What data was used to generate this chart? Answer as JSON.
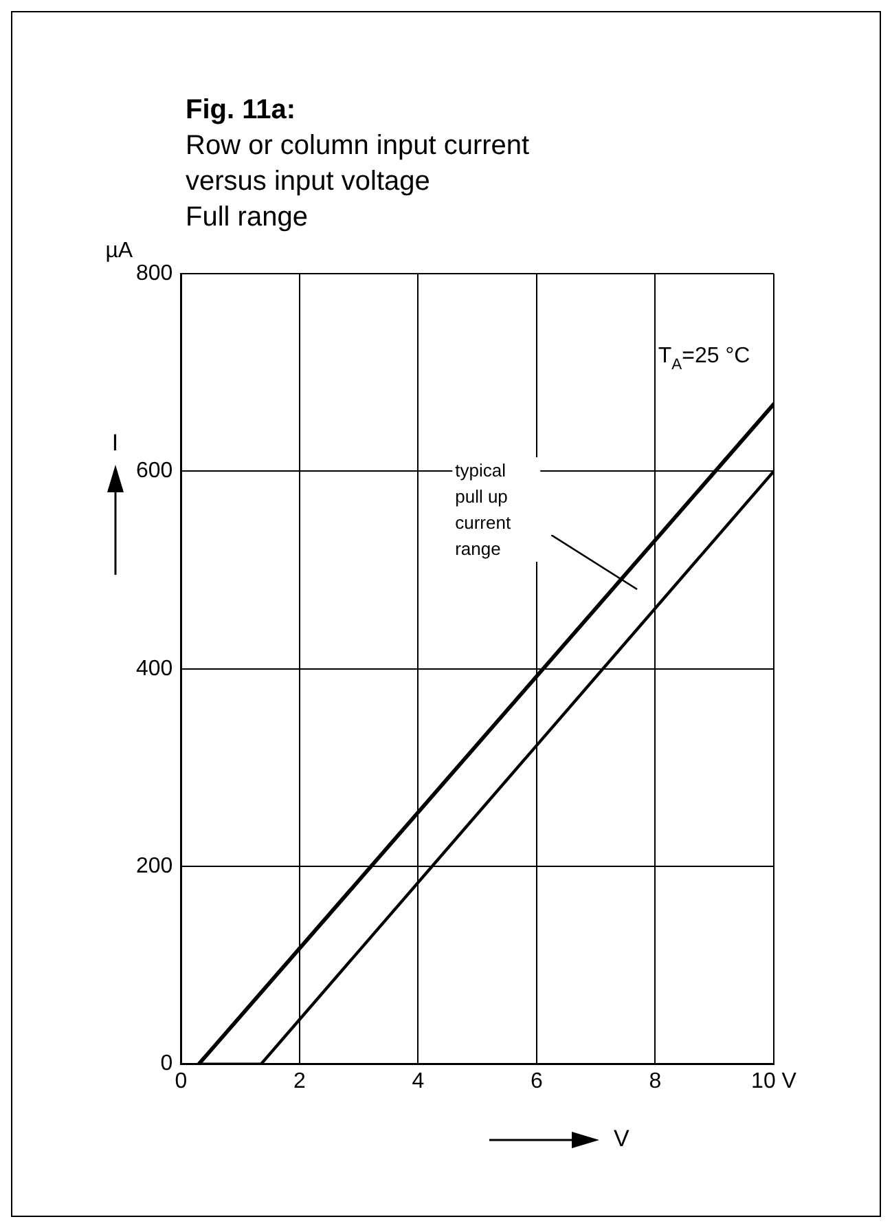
{
  "chart_data": {
    "type": "line",
    "title": "Fig. 11a:",
    "subtitle": "Row or column input current\nversus input voltage\nFull range",
    "xlabel": "V",
    "ylabel": "I",
    "annotations": [
      "µA",
      "T$_{A}$=25 °C",
      "typical pull up current range"
    ],
    "series": [
      {
        "color": "#000000",
        "x": [
          0.3,
          10
        ],
        "values": [
          0,
          668
        ]
      },
      {
        "color": "#000000",
        "x": [
          0.3,
          1.35,
          10
        ],
        "values": [
          0,
          0,
          600
        ]
      }
    ],
    "xlim": [
      0,
      10
    ],
    "xticks": [
      0,
      2,
      4,
      6,
      8,
      {
        "value": 10,
        "label": "10 V"
      }
    ],
    "ylim": [
      0,
      800
    ],
    "yticks": [
      0,
      200,
      400,
      600,
      800
    ],
    "grid": true,
    "legend": false,
    "marker": "none",
    "line_style": "solid"
  }
}
